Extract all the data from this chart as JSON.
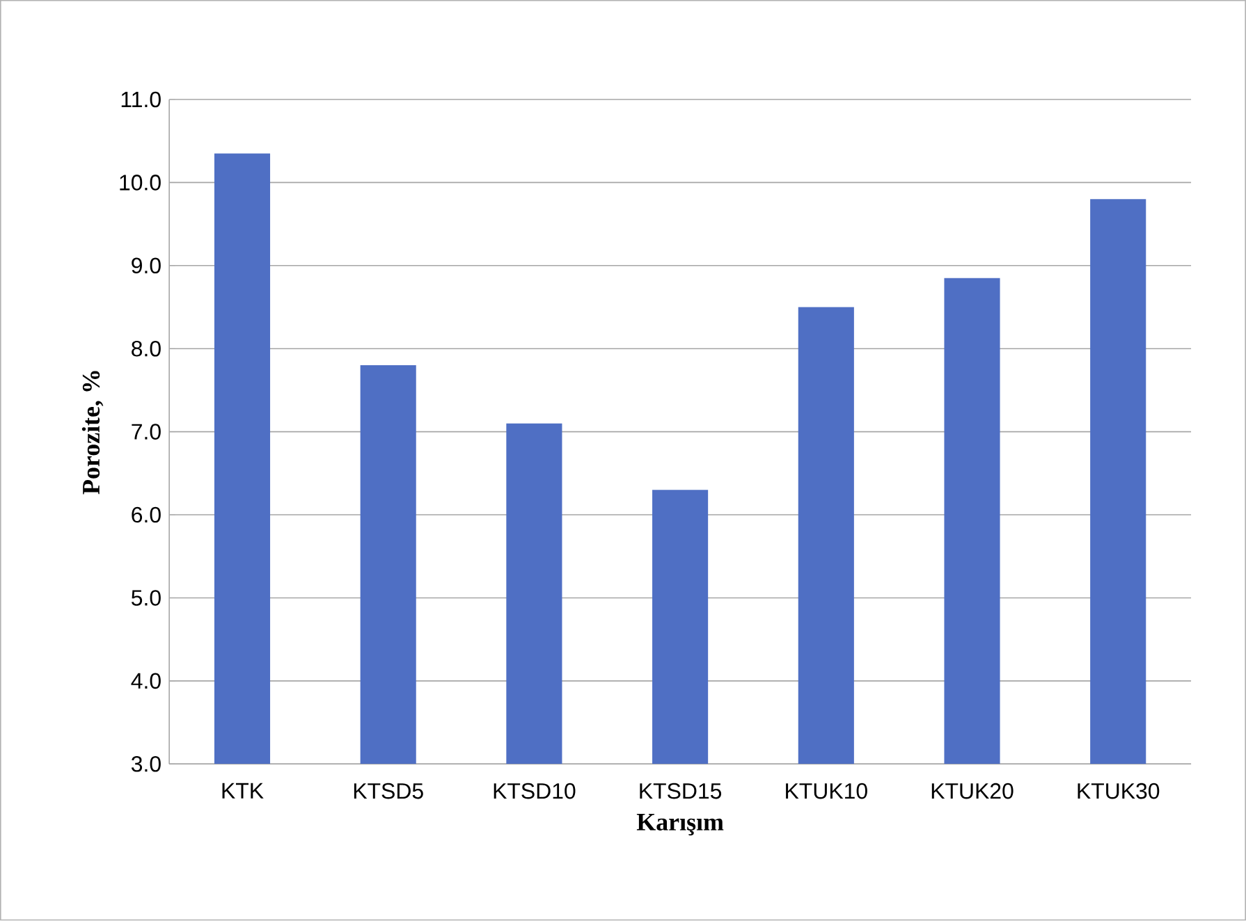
{
  "chart_data": {
    "type": "bar",
    "xlabel": "Karışım",
    "ylabel": "Porozite, %",
    "categories": [
      "KTK",
      "KTSD5",
      "KTSD10",
      "KTSD15",
      "KTUK10",
      "KTUK20",
      "KTUK30"
    ],
    "values": [
      10.35,
      7.8,
      7.1,
      6.3,
      8.5,
      8.85,
      9.8
    ],
    "color": "#4f6fc4",
    "ylim": [
      3,
      11
    ],
    "yticks": [
      {
        "value": 3,
        "label": "3.0"
      },
      {
        "value": 4,
        "label": "4.0"
      },
      {
        "value": 5,
        "label": "5.0"
      },
      {
        "value": 6,
        "label": "6.0"
      },
      {
        "value": 7,
        "label": "7.0"
      },
      {
        "value": 8,
        "label": "8.0"
      },
      {
        "value": 9,
        "label": "9.0"
      },
      {
        "value": 10,
        "label": "10.0"
      },
      {
        "value": 11,
        "label": "11.0"
      }
    ],
    "grid": "y"
  }
}
